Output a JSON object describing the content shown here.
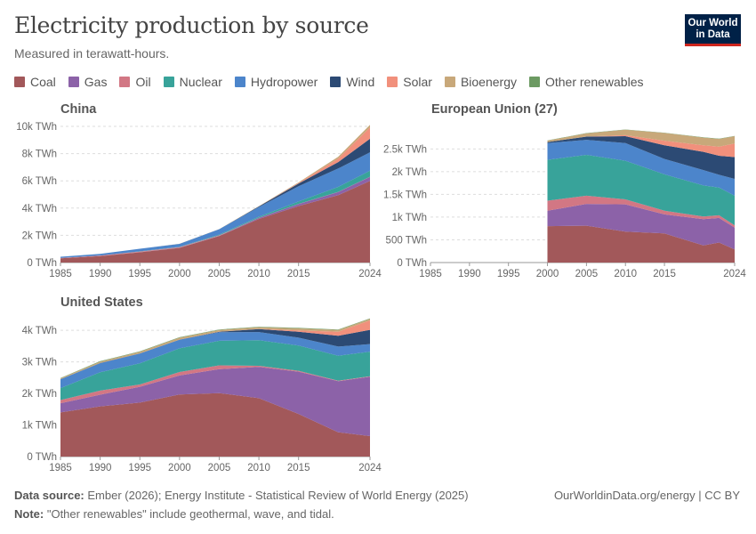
{
  "header": {
    "title": "Electricity production by source",
    "subtitle": "Measured in terawatt-hours.",
    "logo_line1": "Our World",
    "logo_line2": "in Data"
  },
  "footer": {
    "source_label": "Data source:",
    "source_text": "Ember (2026); Energy Institute - Statistical Review of World Energy (2025)",
    "note_label": "Note:",
    "note_text": "\"Other renewables\" include geothermal, wave, and tidal.",
    "credit": "OurWorldinData.org/energy | CC BY"
  },
  "legend": [
    {
      "name": "Coal",
      "color": "#a2585a"
    },
    {
      "name": "Gas",
      "color": "#8c62a8"
    },
    {
      "name": "Oil",
      "color": "#d27784"
    },
    {
      "name": "Nuclear",
      "color": "#38a39a"
    },
    {
      "name": "Hydropower",
      "color": "#4c85cb"
    },
    {
      "name": "Wind",
      "color": "#2c4a74"
    },
    {
      "name": "Solar",
      "color": "#f1907c"
    },
    {
      "name": "Bioenergy",
      "color": "#c8a87a"
    },
    {
      "name": "Other renewables",
      "color": "#6c9a62"
    }
  ],
  "chart_data": [
    {
      "type": "area",
      "stacked": true,
      "title": "China",
      "xlim": [
        1985,
        2024
      ],
      "ylim": [
        0,
        10000
      ],
      "x_ticks": [
        1985,
        1990,
        1995,
        2000,
        2005,
        2010,
        2015,
        2024
      ],
      "y_ticks": [
        0,
        2000,
        4000,
        6000,
        8000,
        10000
      ],
      "y_tick_labels": [
        "0 TWh",
        "2k TWh",
        "4k TWh",
        "6k TWh",
        "8k TWh",
        "10k TWh"
      ],
      "x": [
        1985,
        1990,
        1995,
        2000,
        2005,
        2010,
        2015,
        2020,
        2024
      ],
      "series": [
        {
          "name": "Coal",
          "values": [
            310,
            470,
            750,
            1080,
            1950,
            3200,
            4150,
            4950,
            6000
          ]
        },
        {
          "name": "Gas",
          "values": [
            5,
            5,
            8,
            10,
            20,
            80,
            150,
            230,
            290
          ]
        },
        {
          "name": "Oil",
          "values": [
            20,
            40,
            50,
            45,
            30,
            15,
            10,
            10,
            10
          ]
        },
        {
          "name": "Nuclear",
          "values": [
            0,
            0,
            13,
            17,
            53,
            74,
            171,
            366,
            450
          ]
        },
        {
          "name": "Hydropower",
          "values": [
            90,
            127,
            190,
            222,
            397,
            711,
            1130,
            1355,
            1350
          ]
        },
        {
          "name": "Wind",
          "values": [
            0,
            0,
            0,
            1,
            2,
            45,
            186,
            467,
            990
          ]
        },
        {
          "name": "Solar",
          "values": [
            0,
            0,
            0,
            0,
            0,
            1,
            45,
            261,
            830
          ]
        },
        {
          "name": "Bioenergy",
          "values": [
            0,
            0,
            0,
            2,
            5,
            20,
            50,
            135,
            200
          ]
        },
        {
          "name": "Other renewables",
          "values": [
            0,
            0,
            0,
            0,
            0,
            0,
            0,
            0,
            0
          ]
        }
      ]
    },
    {
      "type": "area",
      "stacked": true,
      "title": "European Union (27)",
      "xlim": [
        1985,
        2024
      ],
      "ylim": [
        0,
        2800
      ],
      "x_ticks": [
        1985,
        1990,
        1995,
        2000,
        2005,
        2010,
        2015,
        2024
      ],
      "y_ticks": [
        0,
        500,
        1000,
        1500,
        2000,
        2500
      ],
      "y_tick_labels": [
        "0 TWh",
        "500 TWh",
        "1k TWh",
        "1.5k TWh",
        "2k TWh",
        "2.5k TWh"
      ],
      "x": [
        2000,
        2005,
        2010,
        2015,
        2020,
        2022,
        2024
      ],
      "series": [
        {
          "name": "Coal",
          "values": [
            800,
            810,
            680,
            640,
            375,
            440,
            290
          ]
        },
        {
          "name": "Gas",
          "values": [
            340,
            480,
            600,
            420,
            580,
            540,
            480
          ]
        },
        {
          "name": "Oil",
          "values": [
            220,
            180,
            110,
            80,
            60,
            60,
            50
          ]
        },
        {
          "name": "Nuclear",
          "values": [
            900,
            900,
            850,
            800,
            680,
            610,
            650
          ]
        },
        {
          "name": "Hydropower",
          "values": [
            370,
            330,
            390,
            340,
            340,
            280,
            370
          ]
        },
        {
          "name": "Wind",
          "values": [
            22,
            70,
            150,
            300,
            400,
            420,
            480
          ]
        },
        {
          "name": "Solar",
          "values": [
            0,
            2,
            22,
            100,
            145,
            200,
            300
          ]
        },
        {
          "name": "Bioenergy",
          "values": [
            30,
            70,
            120,
            170,
            170,
            170,
            160
          ]
        },
        {
          "name": "Other renewables",
          "values": [
            5,
            6,
            6,
            6,
            6,
            6,
            6
          ]
        }
      ]
    },
    {
      "type": "area",
      "stacked": true,
      "title": "United States",
      "xlim": [
        1985,
        2024
      ],
      "ylim": [
        0,
        4400
      ],
      "x_ticks": [
        1985,
        1990,
        1995,
        2000,
        2005,
        2010,
        2015,
        2024
      ],
      "y_ticks": [
        0,
        1000,
        2000,
        3000,
        4000
      ],
      "y_tick_labels": [
        "0 TWh",
        "1k TWh",
        "2k TWh",
        "3k TWh",
        "4k TWh"
      ],
      "x": [
        1985,
        1990,
        1995,
        2000,
        2005,
        2010,
        2015,
        2020,
        2024
      ],
      "series": [
        {
          "name": "Coal",
          "values": [
            1400,
            1590,
            1710,
            1970,
            2010,
            1850,
            1350,
            770,
            650
          ]
        },
        {
          "name": "Gas",
          "values": [
            290,
            370,
            500,
            600,
            760,
            990,
            1340,
            1620,
            1880
          ]
        },
        {
          "name": "Oil",
          "values": [
            100,
            130,
            75,
            110,
            120,
            37,
            28,
            17,
            15
          ]
        },
        {
          "name": "Nuclear",
          "values": [
            380,
            580,
            670,
            750,
            780,
            810,
            800,
            790,
            780
          ]
        },
        {
          "name": "Hydropower",
          "values": [
            280,
            290,
            310,
            270,
            270,
            260,
            250,
            290,
            240
          ]
        },
        {
          "name": "Wind",
          "values": [
            0,
            3,
            3,
            6,
            18,
            95,
            190,
            340,
            450
          ]
        },
        {
          "name": "Solar",
          "values": [
            0,
            0,
            0,
            1,
            1,
            3,
            39,
            130,
            300
          ]
        },
        {
          "name": "Bioenergy",
          "values": [
            30,
            45,
            55,
            60,
            55,
            56,
            64,
            56,
            50
          ]
        },
        {
          "name": "Other renewables",
          "values": [
            11,
            15,
            14,
            14,
            15,
            15,
            17,
            16,
            16
          ]
        }
      ]
    }
  ]
}
